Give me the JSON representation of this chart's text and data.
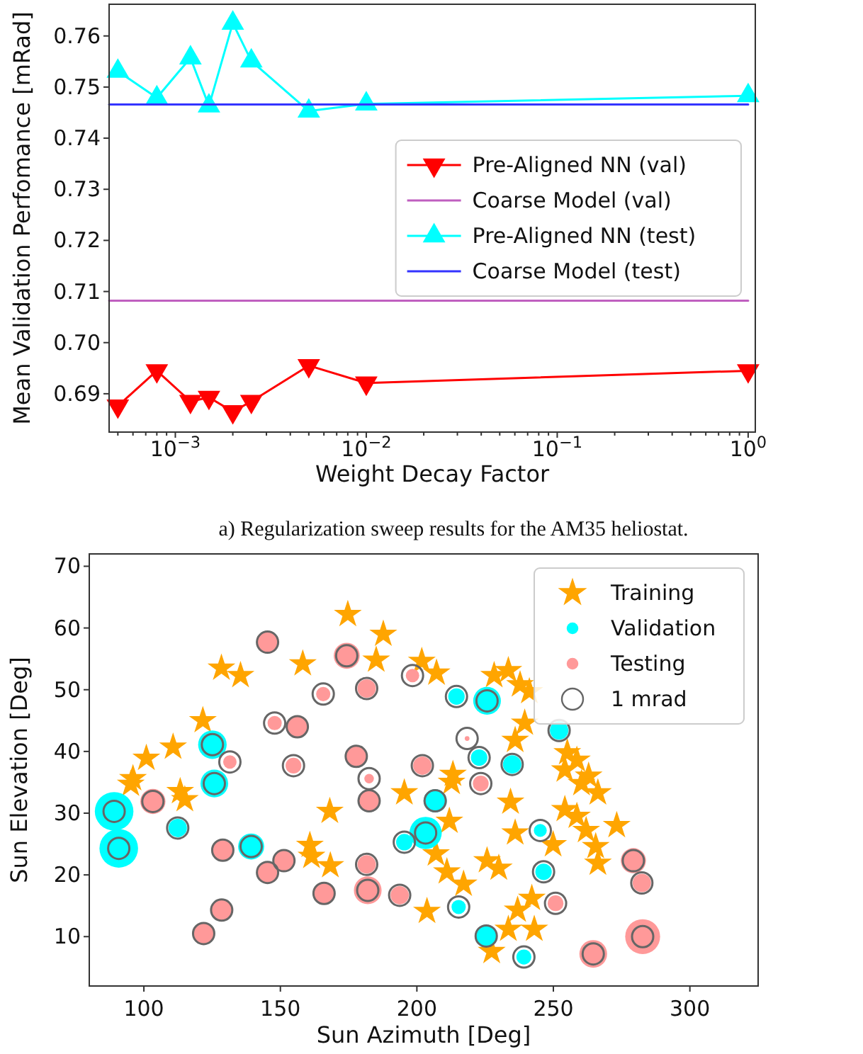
{
  "chart_data": [
    {
      "type": "line",
      "xlabel": "Weight Decay Factor",
      "ylabel": "Mean Validation Perfomance [mRad]",
      "log": "x",
      "legend": "center right",
      "annotations": [
        "a) Regularization sweep results for the AM35 heliostat."
      ],
      "xlim": [
        0.00045,
        1.09
      ],
      "ylim": [
        0.6825,
        0.7662
      ],
      "xticks": [
        {
          "value": 0.001,
          "label": "10$^{−3}$"
        },
        {
          "value": 0.01,
          "label": "10$^{−2}$"
        },
        {
          "value": 0.1,
          "label": "10$^{−1}$"
        },
        {
          "value": 1,
          "label": "10$^{0}$"
        },
        {
          "value": 0.0005,
          "label": null
        },
        {
          "value": 0.0006,
          "label": null
        },
        {
          "value": 0.0007,
          "label": null
        },
        {
          "value": 0.0008,
          "label": null
        },
        {
          "value": 0.0009,
          "label": null
        },
        {
          "value": 0.002,
          "label": null
        },
        {
          "value": 0.003,
          "label": null
        },
        {
          "value": 0.004,
          "label": null
        },
        {
          "value": 0.005,
          "label": null
        },
        {
          "value": 0.006,
          "label": null
        },
        {
          "value": 0.007,
          "label": null
        },
        {
          "value": 0.008,
          "label": null
        },
        {
          "value": 0.009,
          "label": null
        },
        {
          "value": 0.02,
          "label": null
        },
        {
          "value": 0.03,
          "label": null
        },
        {
          "value": 0.04,
          "label": null
        },
        {
          "value": 0.05,
          "label": null
        },
        {
          "value": 0.06,
          "label": null
        },
        {
          "value": 0.07,
          "label": null
        },
        {
          "value": 0.08,
          "label": null
        },
        {
          "value": 0.09,
          "label": null
        },
        {
          "value": 0.2,
          "label": null
        },
        {
          "value": 0.3,
          "label": null
        },
        {
          "value": 0.4,
          "label": null
        },
        {
          "value": 0.5,
          "label": null
        },
        {
          "value": 0.6,
          "label": null
        },
        {
          "value": 0.7,
          "label": null
        },
        {
          "value": 0.8,
          "label": null
        },
        {
          "value": 0.9,
          "label": null
        }
      ],
      "yticks": [
        0.69,
        {
          "value": 0.7,
          "label": "0.70"
        },
        0.71,
        0.72,
        0.73,
        0.74,
        0.75,
        0.76
      ],
      "series": [
        {
          "name": "Pre-Aligned NN (val)",
          "color": "#ff0000",
          "marker": "triangle-down",
          "x": [
            0.0005,
            0.0008,
            0.0012,
            0.0015,
            0.002,
            0.0025,
            0.005,
            0.01,
            1
          ],
          "values": [
            0.6876,
            0.6945,
            0.6885,
            0.6893,
            0.6865,
            0.6885,
            0.6955,
            0.6921,
            0.6945
          ]
        },
        {
          "name": "Coarse Model (val)",
          "color": "#bf5fbf",
          "marker": "none",
          "x": [
            0.00045,
            1
          ],
          "values": [
            0.7082,
            0.7082
          ]
        },
        {
          "name": "Pre-Aligned NN (test)",
          "color": "#00ffff",
          "marker": "triangle",
          "x": [
            0.0005,
            0.0008,
            0.0012,
            0.0015,
            0.002,
            0.0025,
            0.005,
            0.01,
            1
          ],
          "values": [
            0.7531,
            0.7479,
            0.7557,
            0.7463,
            0.7625,
            0.7551,
            0.7453,
            0.7467,
            0.7483
          ]
        },
        {
          "name": "Coarse Model (test)",
          "color": "#3333ff",
          "marker": "none",
          "x": [
            0.00045,
            1
          ],
          "values": [
            0.7466,
            0.7466
          ]
        }
      ]
    },
    {
      "type": "scatter",
      "xlabel": "Sun Azimuth [Deg]",
      "ylabel": "Sun Elevation [Deg]",
      "legend": "top right",
      "xlim": [
        80,
        325
      ],
      "ylim": [
        2,
        72
      ],
      "xticks": [
        100,
        150,
        200,
        250,
        300
      ],
      "yticks": [
        10,
        20,
        30,
        40,
        50,
        60,
        70
      ],
      "size_legend": [
        {
          "value": 1,
          "label": "1 mrad"
        }
      ],
      "series": [
        {
          "name": "Training",
          "marker": "star",
          "color": "#ffa500",
          "x": [
            174.7,
            187.7,
            128.4,
            135.4,
            158.2,
            185.1,
            201.8,
            207.2,
            121.6,
            110.7,
            100.9,
            96.0,
            95.2,
            113.3,
            115.0,
            168.1,
            195.4,
            213.2,
            212.7,
            211.9,
            160.8,
            161.4,
            168.3,
            207.0,
            211.0,
            217.1,
            203.7,
            228.3,
            233.5,
            237.8,
            241.2,
            239.5,
            236.0,
            255.1,
            258.6,
            254.2,
            262.9,
            260.3,
            266.3,
            234.3,
            254.2,
            258.6,
            262.0,
            273.2,
            236.0,
            249.9,
            265.5,
            266.3,
            225.7,
            230.0,
            242.1,
            236.9,
            233.5,
            243.0,
            227.4
          ],
          "values": [
            62.2,
            59.0,
            53.5,
            52.3,
            54.2,
            54.8,
            54.6,
            52.7,
            45.0,
            40.7,
            38.9,
            35.6,
            34.7,
            33.5,
            32.2,
            30.3,
            33.3,
            36.3,
            35.0,
            28.7,
            24.8,
            23.0,
            21.5,
            23.4,
            20.5,
            18.5,
            14.1,
            52.3,
            53.1,
            50.8,
            49.7,
            44.6,
            41.8,
            39.8,
            38.6,
            37.0,
            36.0,
            34.8,
            33.3,
            31.8,
            30.6,
            29.5,
            27.2,
            28.0,
            26.8,
            24.9,
            24.6,
            21.9,
            22.3,
            21.1,
            16.2,
            14.3,
            11.2,
            11.2,
            7.6
          ]
        },
        {
          "name": "Validation",
          "type": "bubble",
          "marker": "circle",
          "color": "#00ffff",
          "x": [
            89.1,
            90.8,
            125.1,
            125.8,
            112.4,
            139.3,
            206.7,
            203.2,
            195.4,
            214.5,
            215.3,
            225.7,
            252.1,
            222.8,
            234.9,
            245.2,
            246.4,
            225.4,
            239.2
          ],
          "values": [
            30.3,
            24.3,
            41.1,
            34.8,
            27.6,
            24.6,
            32.0,
            26.8,
            25.3,
            48.9,
            14.8,
            48.2,
            43.4,
            39.0,
            37.9,
            27.2,
            20.5,
            10.1,
            6.7
          ],
          "sizes": [
            3.3,
            3.3,
            1.8,
            1.7,
            0.75,
            1.5,
            1.2,
            2.3,
            0.6,
            0.6,
            0.45,
            1.7,
            0.75,
            0.6,
            0.75,
            0.37,
            0.6,
            0.9,
            0.5
          ]
        },
        {
          "name": "Testing",
          "type": "bubble",
          "marker": "circle",
          "color": "#ff9999",
          "x": [
            145.3,
            174.3,
            165.7,
            181.6,
            198.4,
            147.9,
            156.2,
            131.5,
            154.8,
            177.8,
            182.5,
            182.5,
            202.0,
            103.3,
            128.9,
            151.3,
            145.3,
            181.6,
            166.0,
            182.0,
            193.7,
            128.5,
            121.9,
            218.4,
            223.4,
            250.8,
            279.3,
            282.4,
            282.7,
            264.6
          ],
          "values": [
            57.7,
            55.5,
            49.3,
            50.2,
            52.3,
            44.6,
            44.0,
            38.3,
            37.7,
            39.2,
            35.6,
            32.0,
            37.7,
            31.9,
            24.0,
            22.3,
            20.4,
            21.7,
            17.0,
            17.5,
            16.7,
            14.3,
            10.5,
            42.1,
            34.8,
            15.4,
            22.3,
            18.7,
            10.0,
            7.2
          ],
          "sizes": [
            1.1,
            1.5,
            0.45,
            0.75,
            0.4,
            0.45,
            1.1,
            0.4,
            0.55,
            0.9,
            0.2,
            0.9,
            0.75,
            1.4,
            0.9,
            1.0,
            0.9,
            0.75,
            1.1,
            1.7,
            0.75,
            1.0,
            1.0,
            0.05,
            0.55,
            0.55,
            1.4,
            0.75,
            2.7,
            1.7
          ]
        }
      ]
    }
  ]
}
